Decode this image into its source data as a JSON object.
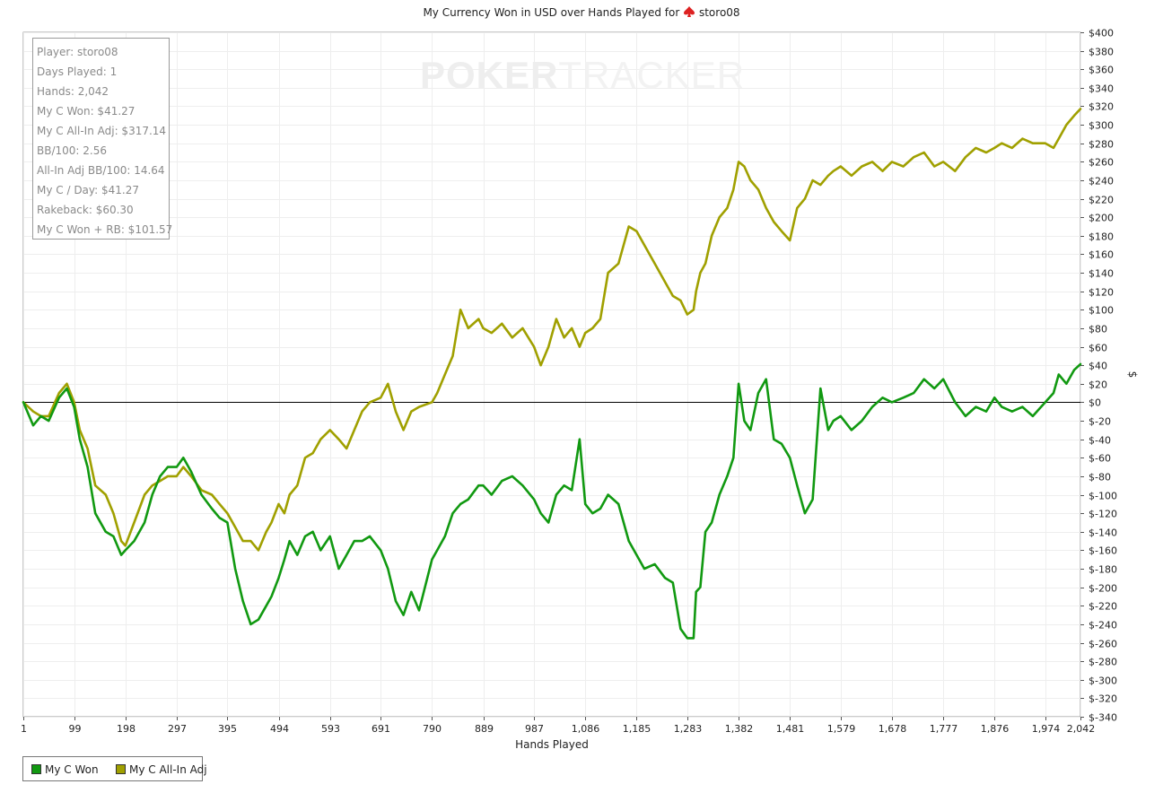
{
  "chart_data": {
    "type": "line",
    "title": "My Currency Won in USD over Hands Played for",
    "title_player": "storo08",
    "xlabel": "Hands Played",
    "ylabel": "$",
    "xlim": [
      1,
      2042
    ],
    "ylim": [
      -340,
      400
    ],
    "x_ticks": [
      1,
      99,
      198,
      297,
      395,
      494,
      593,
      691,
      790,
      889,
      987,
      1086,
      1185,
      1283,
      1382,
      1481,
      1579,
      1678,
      1777,
      1876,
      1974,
      2042
    ],
    "x_tick_labels": [
      "1",
      "99",
      "198",
      "297",
      "395",
      "494",
      "593",
      "691",
      "790",
      "889",
      "987",
      "1,086",
      "1,185",
      "1,283",
      "1,382",
      "1,481",
      "1,579",
      "1,678",
      "1,777",
      "1,876",
      "1,974",
      "2,042"
    ],
    "y_ticks": [
      400,
      380,
      360,
      340,
      320,
      300,
      280,
      260,
      240,
      220,
      200,
      180,
      160,
      140,
      120,
      100,
      80,
      60,
      40,
      20,
      0,
      -20,
      -40,
      -60,
      -80,
      -100,
      -120,
      -140,
      -160,
      -180,
      -200,
      -220,
      -240,
      -260,
      -280,
      -300,
      -320,
      -340
    ],
    "y_tick_labels": [
      "$400",
      "$380",
      "$360",
      "$340",
      "$320",
      "$300",
      "$280",
      "$260",
      "$240",
      "$220",
      "$200",
      "$180",
      "$160",
      "$140",
      "$120",
      "$100",
      "$80",
      "$60",
      "$40",
      "$20",
      "$0",
      "$-20",
      "$-40",
      "$-60",
      "$-80",
      "$-100",
      "$-120",
      "$-140",
      "$-160",
      "$-180",
      "$-200",
      "$-220",
      "$-240",
      "$-260",
      "$-280",
      "$-300",
      "$-320",
      "$-340"
    ],
    "grid": true,
    "y_axis_side": "right",
    "zero_line": true,
    "legend_placement": "bottom-left",
    "series": [
      {
        "name": "My C Won",
        "color": "#119911",
        "x": [
          1,
          20,
          35,
          50,
          70,
          85,
          99,
          110,
          125,
          140,
          160,
          175,
          190,
          198,
          215,
          235,
          250,
          265,
          280,
          297,
          310,
          325,
          345,
          365,
          380,
          395,
          410,
          425,
          440,
          455,
          470,
          480,
          494,
          505,
          515,
          530,
          545,
          560,
          575,
          593,
          610,
          625,
          640,
          655,
          670,
          691,
          705,
          720,
          735,
          750,
          765,
          790,
          800,
          815,
          830,
          845,
          860,
          880,
          889,
          905,
          925,
          945,
          965,
          987,
          1000,
          1015,
          1030,
          1045,
          1060,
          1075,
          1086,
          1100,
          1115,
          1130,
          1150,
          1170,
          1185,
          1200,
          1220,
          1240,
          1255,
          1270,
          1283,
          1295,
          1300,
          1308,
          1318,
          1330,
          1345,
          1360,
          1372,
          1382,
          1393,
          1405,
          1420,
          1435,
          1450,
          1465,
          1481,
          1495,
          1510,
          1525,
          1540,
          1555,
          1565,
          1579,
          1600,
          1620,
          1640,
          1660,
          1678,
          1700,
          1720,
          1740,
          1760,
          1777,
          1800,
          1820,
          1840,
          1860,
          1876,
          1890,
          1910,
          1930,
          1950,
          1974,
          1990,
          2000,
          2015,
          2030,
          2042
        ],
        "y": [
          0,
          -25,
          -15,
          -20,
          5,
          15,
          -5,
          -40,
          -70,
          -120,
          -140,
          -145,
          -165,
          -160,
          -150,
          -130,
          -100,
          -80,
          -70,
          -70,
          -60,
          -75,
          -100,
          -115,
          -125,
          -130,
          -180,
          -215,
          -240,
          -235,
          -220,
          -210,
          -190,
          -170,
          -150,
          -165,
          -145,
          -140,
          -160,
          -145,
          -180,
          -165,
          -150,
          -150,
          -145,
          -160,
          -180,
          -215,
          -230,
          -205,
          -225,
          -170,
          -160,
          -145,
          -120,
          -110,
          -105,
          -90,
          -90,
          -100,
          -85,
          -80,
          -90,
          -105,
          -120,
          -130,
          -100,
          -90,
          -95,
          -40,
          -110,
          -120,
          -115,
          -100,
          -110,
          -150,
          -165,
          -180,
          -175,
          -190,
          -195,
          -245,
          -255,
          -255,
          -205,
          -200,
          -140,
          -130,
          -100,
          -80,
          -60,
          20,
          -20,
          -30,
          10,
          25,
          -40,
          -45,
          -60,
          -90,
          -120,
          -105,
          15,
          -30,
          -20,
          -15,
          -30,
          -20,
          -5,
          5,
          0,
          5,
          10,
          25,
          15,
          25,
          0,
          -15,
          -5,
          -10,
          5,
          -5,
          -10,
          -5,
          -15,
          0,
          10,
          30,
          20,
          35,
          41.27
        ]
      },
      {
        "name": "My C All-In Adj",
        "color": "#a0a000",
        "x": [
          1,
          20,
          35,
          50,
          70,
          85,
          99,
          110,
          125,
          140,
          160,
          175,
          190,
          198,
          215,
          235,
          250,
          265,
          280,
          297,
          310,
          325,
          345,
          365,
          380,
          395,
          410,
          425,
          440,
          455,
          470,
          480,
          494,
          505,
          515,
          530,
          545,
          560,
          575,
          593,
          610,
          625,
          640,
          655,
          670,
          691,
          705,
          720,
          735,
          750,
          765,
          790,
          800,
          815,
          830,
          845,
          860,
          880,
          889,
          905,
          925,
          945,
          965,
          987,
          1000,
          1015,
          1030,
          1045,
          1060,
          1075,
          1086,
          1100,
          1115,
          1130,
          1150,
          1170,
          1185,
          1200,
          1220,
          1240,
          1255,
          1270,
          1283,
          1295,
          1300,
          1308,
          1318,
          1330,
          1345,
          1360,
          1372,
          1382,
          1393,
          1405,
          1420,
          1435,
          1450,
          1465,
          1481,
          1495,
          1510,
          1525,
          1540,
          1555,
          1565,
          1579,
          1600,
          1620,
          1640,
          1660,
          1678,
          1700,
          1720,
          1740,
          1760,
          1777,
          1800,
          1820,
          1840,
          1860,
          1876,
          1890,
          1910,
          1930,
          1950,
          1974,
          1990,
          2000,
          2015,
          2030,
          2042
        ],
        "y": [
          0,
          -10,
          -15,
          -15,
          10,
          20,
          0,
          -30,
          -50,
          -90,
          -100,
          -120,
          -150,
          -155,
          -130,
          -100,
          -90,
          -85,
          -80,
          -80,
          -70,
          -80,
          -95,
          -100,
          -110,
          -120,
          -135,
          -150,
          -150,
          -160,
          -140,
          -130,
          -110,
          -120,
          -100,
          -90,
          -60,
          -55,
          -40,
          -30,
          -40,
          -50,
          -30,
          -10,
          0,
          5,
          20,
          -10,
          -30,
          -10,
          -5,
          0,
          10,
          30,
          50,
          100,
          80,
          90,
          80,
          75,
          85,
          70,
          80,
          60,
          40,
          60,
          90,
          70,
          80,
          60,
          75,
          80,
          90,
          140,
          150,
          190,
          185,
          170,
          150,
          130,
          115,
          110,
          95,
          100,
          120,
          140,
          150,
          180,
          200,
          210,
          230,
          260,
          255,
          240,
          230,
          210,
          195,
          185,
          175,
          210,
          220,
          240,
          235,
          245,
          250,
          255,
          245,
          255,
          260,
          250,
          260,
          255,
          265,
          270,
          255,
          260,
          250,
          265,
          275,
          270,
          275,
          280,
          275,
          285,
          280,
          280,
          275,
          285,
          300,
          310,
          317.14
        ]
      }
    ]
  },
  "stats_box": {
    "player": "Player: storo08",
    "days_played": "Days Played: 1",
    "hands": "Hands: 2,042",
    "won": "My C Won: $41.27",
    "all_in_adj": "My C All-In Adj: $317.14",
    "bb100": "BB/100: 2.56",
    "all_in_bb100": "All-In Adj BB/100: 14.64",
    "per_day": "My C / Day: $41.27",
    "rakeback": "Rakeback: $60.30",
    "won_plus_rb": "My C Won + RB: $101.57"
  },
  "watermark": {
    "part1": "POKER",
    "part2": "TRACKER"
  },
  "legend": {
    "won": "My C Won",
    "all_in_adj": "My C All-In Adj"
  },
  "colors": {
    "won": "#119911",
    "all_in_adj": "#a0a000",
    "grid": "#eeeeee",
    "zero_line": "#000000",
    "spade": "#dd2222"
  }
}
